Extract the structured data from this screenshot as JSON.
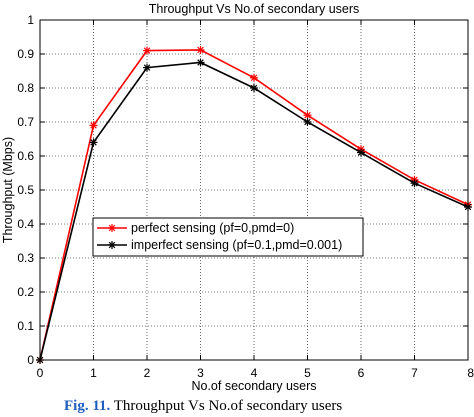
{
  "chart_data": {
    "type": "line",
    "title": "Throughput Vs No.of secondary users",
    "xlabel": "No.of secondary users",
    "ylabel": "Throughput (Mbps)",
    "xlim": [
      0,
      8
    ],
    "ylim": [
      0,
      1
    ],
    "xticks": [
      "0",
      "1",
      "2",
      "3",
      "4",
      "5",
      "6",
      "7",
      "8"
    ],
    "yticks": [
      "0",
      "0.1",
      "0.2",
      "0.3",
      "0.4",
      "0.5",
      "0.6",
      "0.7",
      "0.8",
      "0.9",
      "1"
    ],
    "grid": true,
    "legend_position": "center-left",
    "x": [
      0,
      1,
      2,
      3,
      4,
      5,
      6,
      7,
      8
    ],
    "series": [
      {
        "name": "perfect sensing (pf=0,pmd=0)",
        "color": "#ff0000",
        "marker": "asterisk",
        "values": [
          0,
          0.69,
          0.91,
          0.912,
          0.83,
          0.72,
          0.62,
          0.53,
          0.457
        ]
      },
      {
        "name": "imperfect sensing (pf=0.1,pmd=0.001)",
        "color": "#000000",
        "marker": "asterisk",
        "values": [
          0,
          0.64,
          0.86,
          0.875,
          0.8,
          0.7,
          0.61,
          0.52,
          0.45
        ]
      }
    ]
  },
  "caption": {
    "label": "Fig. 11.",
    "text": " Throughput Vs No.of secondary users"
  }
}
